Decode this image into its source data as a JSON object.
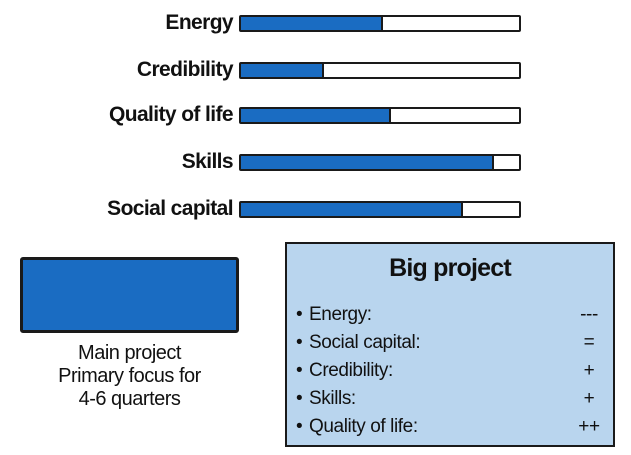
{
  "meters": [
    {
      "label": "Energy",
      "level": 0.51
    },
    {
      "label": "Credibility",
      "level": 0.3
    },
    {
      "label": "Quality of life",
      "level": 0.54
    },
    {
      "label": "Skills",
      "level": 0.91
    },
    {
      "label": "Social capital",
      "level": 0.8
    }
  ],
  "main_project": {
    "line1": "Main project",
    "line2": "Primary focus for",
    "line3": "4-6 quarters"
  },
  "big_project": {
    "title": "Big project",
    "items": [
      {
        "bullet": "•",
        "name": "Energy:",
        "rating": "---"
      },
      {
        "bullet": "•",
        "name": "Social capital:",
        "rating": "="
      },
      {
        "bullet": "•",
        "name": "Credibility:",
        "rating": "+"
      },
      {
        "bullet": "•",
        "name": "Skills:",
        "rating": "+"
      },
      {
        "bullet": "•",
        "name": "Quality of life:",
        "rating": "++"
      }
    ]
  },
  "colors": {
    "fill": "#1a6cc2",
    "panel": "#b9d5ee",
    "outline": "#1a1a1a"
  }
}
